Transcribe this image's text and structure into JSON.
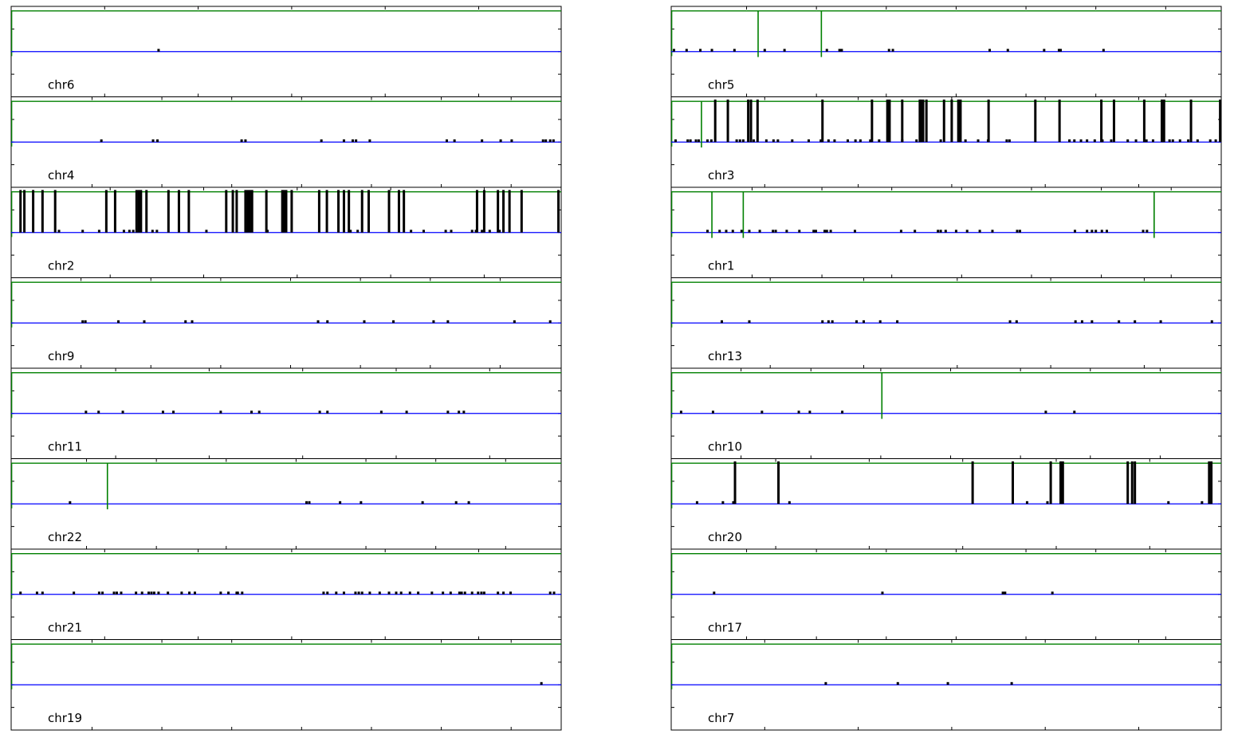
{
  "figure": {
    "columns": 2,
    "rows": 8,
    "colors": {
      "baseline": "#0000ff",
      "frame": "#008000",
      "mark": "#000000",
      "marker": "#008000",
      "axes": "#000000"
    },
    "x_range": [
      0,
      1
    ],
    "y_range": [
      0,
      1
    ],
    "baseline_level": 0.5,
    "small_mark_height": 0.03,
    "tall_mark_height": 0.47,
    "frame_level": 0.95
  },
  "chart_data": [
    {
      "type": "bar",
      "chromosome": "chr6",
      "small": [
        0.268
      ],
      "tall": [],
      "markers": []
    },
    {
      "type": "bar",
      "chromosome": "chr5",
      "small": [
        0.005,
        0.028,
        0.053,
        0.074,
        0.115,
        0.17,
        0.206,
        0.283,
        0.306,
        0.31,
        0.396,
        0.403,
        0.579,
        0.612,
        0.678,
        0.705,
        0.708,
        0.786
      ],
      "tall": [],
      "markers": [
        0.158,
        0.273
      ]
    },
    {
      "type": "bar",
      "chromosome": "chr4",
      "small": [
        0.164,
        0.258,
        0.266,
        0.419,
        0.426,
        0.564,
        0.605,
        0.621,
        0.627,
        0.652,
        0.792,
        0.806,
        0.856,
        0.89,
        0.91,
        0.967,
        0.972,
        0.98,
        0.986
      ],
      "tall": [],
      "markers": []
    },
    {
      "type": "bar",
      "chromosome": "chr3",
      "small": [
        0.008,
        0.03,
        0.035,
        0.045,
        0.05,
        0.066,
        0.073,
        0.119,
        0.125,
        0.131,
        0.15,
        0.173,
        0.186,
        0.194,
        0.22,
        0.25,
        0.272,
        0.286,
        0.297,
        0.321,
        0.335,
        0.344,
        0.362,
        0.378,
        0.42,
        0.446,
        0.49,
        0.535,
        0.558,
        0.576,
        0.61,
        0.615,
        0.724,
        0.733,
        0.745,
        0.756,
        0.77,
        0.784,
        0.8,
        0.83,
        0.845,
        0.864,
        0.876,
        0.895,
        0.906,
        0.912,
        0.925,
        0.94,
        0.957,
        0.98,
        0.99
      ],
      "tall": [
        0.08,
        0.103,
        0.14,
        0.145,
        0.157,
        0.275,
        0.365,
        0.393,
        0.397,
        0.42,
        0.454,
        0.452,
        0.458,
        0.464,
        0.496,
        0.51,
        0.522,
        0.526,
        0.577,
        0.662,
        0.706,
        0.782,
        0.805,
        0.86,
        0.892,
        0.896,
        0.945,
        0.998
      ],
      "markers": [
        0.055
      ]
    },
    {
      "type": "bar",
      "chromosome": "chr2",
      "small": [
        0.087,
        0.13,
        0.16,
        0.205,
        0.215,
        0.222,
        0.257,
        0.265,
        0.355,
        0.466,
        0.617,
        0.63,
        0.727,
        0.75,
        0.79,
        0.8,
        0.838,
        0.845,
        0.856,
        0.87,
        0.888,
        0.895
      ],
      "tall": [
        0.017,
        0.024,
        0.04,
        0.057,
        0.08,
        0.173,
        0.189,
        0.228,
        0.232,
        0.236,
        0.246,
        0.286,
        0.305,
        0.323,
        0.391,
        0.403,
        0.41,
        0.426,
        0.43,
        0.434,
        0.438,
        0.464,
        0.493,
        0.496,
        0.5,
        0.51,
        0.56,
        0.574,
        0.595,
        0.605,
        0.614,
        0.638,
        0.65,
        0.687,
        0.705,
        0.714,
        0.847,
        0.86,
        0.885,
        0.895,
        0.906,
        0.928,
        0.995
      ],
      "markers": []
    },
    {
      "type": "bar",
      "chromosome": "chr1",
      "small": [
        0.066,
        0.088,
        0.1,
        0.112,
        0.128,
        0.142,
        0.161,
        0.185,
        0.19,
        0.21,
        0.233,
        0.259,
        0.263,
        0.279,
        0.283,
        0.29,
        0.334,
        0.418,
        0.443,
        0.485,
        0.49,
        0.499,
        0.518,
        0.538,
        0.561,
        0.584,
        0.629,
        0.634,
        0.734,
        0.756,
        0.765,
        0.772,
        0.783,
        0.792,
        0.858,
        0.865
      ],
      "tall": [],
      "markers": [
        0.074,
        0.131,
        0.878
      ]
    },
    {
      "type": "bar",
      "chromosome": "chr9",
      "small": [
        0.13,
        0.135,
        0.195,
        0.242,
        0.317,
        0.329,
        0.558,
        0.575,
        0.642,
        0.695,
        0.768,
        0.794,
        0.915,
        0.98
      ],
      "tall": [],
      "markers": []
    },
    {
      "type": "bar",
      "chromosome": "chr13",
      "small": [
        0.092,
        0.142,
        0.275,
        0.286,
        0.293,
        0.337,
        0.35,
        0.38,
        0.411,
        0.616,
        0.628,
        0.735,
        0.747,
        0.765,
        0.814,
        0.843,
        0.89,
        0.983
      ],
      "tall": [],
      "markers": []
    },
    {
      "type": "bar",
      "chromosome": "chr11",
      "small": [
        0.136,
        0.159,
        0.203,
        0.276,
        0.295,
        0.381,
        0.437,
        0.451,
        0.561,
        0.575,
        0.673,
        0.719,
        0.794,
        0.814,
        0.823
      ],
      "tall": [],
      "markers": []
    },
    {
      "type": "bar",
      "chromosome": "chr10",
      "small": [
        0.018,
        0.076,
        0.165,
        0.232,
        0.252,
        0.311,
        0.681,
        0.733
      ],
      "tall": [],
      "markers": [
        0.383
      ]
    },
    {
      "type": "bar",
      "chromosome": "chr22",
      "small": [
        0.107,
        0.537,
        0.542,
        0.598,
        0.636,
        0.748,
        0.809,
        0.832
      ],
      "tall": [],
      "markers": [
        0.175
      ]
    },
    {
      "type": "bar",
      "chromosome": "chr20",
      "small": [
        0.047,
        0.094,
        0.113,
        0.215,
        0.647,
        0.684,
        0.904,
        0.965
      ],
      "tall": [
        0.116,
        0.195,
        0.548,
        0.621,
        0.69,
        0.708,
        0.712,
        0.83,
        0.838,
        0.843,
        0.978,
        0.982
      ],
      "markers": []
    },
    {
      "type": "bar",
      "chromosome": "chr21",
      "small": [
        0.017,
        0.047,
        0.057,
        0.114,
        0.16,
        0.166,
        0.187,
        0.192,
        0.2,
        0.227,
        0.238,
        0.255,
        0.25,
        0.26,
        0.268,
        0.285,
        0.31,
        0.324,
        0.334,
        0.381,
        0.395,
        0.412,
        0.41,
        0.42,
        0.568,
        0.575,
        0.591,
        0.605,
        0.626,
        0.632,
        0.638,
        0.652,
        0.67,
        0.687,
        0.7,
        0.709,
        0.725,
        0.74,
        0.765,
        0.785,
        0.799,
        0.815,
        0.819,
        0.825,
        0.838,
        0.849,
        0.855,
        0.86,
        0.885,
        0.895,
        0.908,
        0.98,
        0.987
      ],
      "tall": [],
      "markers": []
    },
    {
      "type": "bar",
      "chromosome": "chr17",
      "small": [
        0.078,
        0.384,
        0.603,
        0.607,
        0.693
      ],
      "tall": [],
      "markers": []
    },
    {
      "type": "bar",
      "chromosome": "chr19",
      "small": [
        0.964
      ],
      "tall": [],
      "markers": []
    },
    {
      "type": "bar",
      "chromosome": "chr7",
      "small": [
        0.281,
        0.412,
        0.503,
        0.619
      ],
      "tall": [],
      "markers": []
    }
  ]
}
